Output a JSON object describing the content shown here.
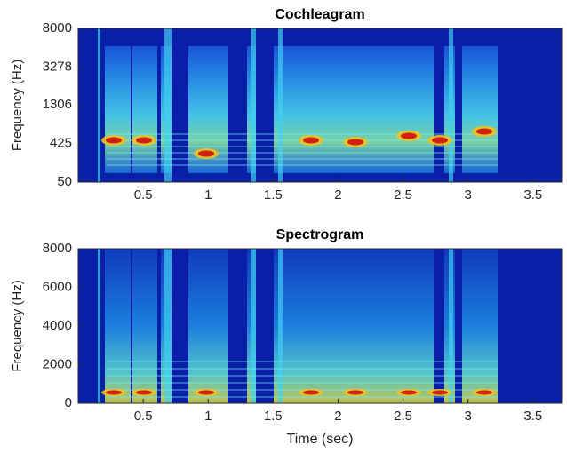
{
  "chart_data": [
    {
      "type": "heatmap",
      "title": "Cochleagram",
      "ylabel": "Frequency (Hz)",
      "xlim": [
        0,
        3.72
      ],
      "xticks": [
        0.5,
        1,
        1.5,
        2,
        2.5,
        3,
        3.5
      ],
      "ylim": [
        50,
        8000
      ],
      "yticks": [
        50,
        425,
        1306,
        3278,
        8000
      ],
      "yscale": "erb"
    },
    {
      "type": "heatmap",
      "title": "Spectrogram",
      "ylabel": "Frequency (Hz)",
      "xlabel": "Time (sec)",
      "xlim": [
        0,
        3.72
      ],
      "xticks": [
        0.5,
        1,
        1.5,
        2,
        2.5,
        3,
        3.5
      ],
      "ylim": [
        0,
        8000
      ],
      "yticks": [
        0,
        2000,
        4000,
        6000,
        8000
      ],
      "yscale": "linear"
    }
  ]
}
